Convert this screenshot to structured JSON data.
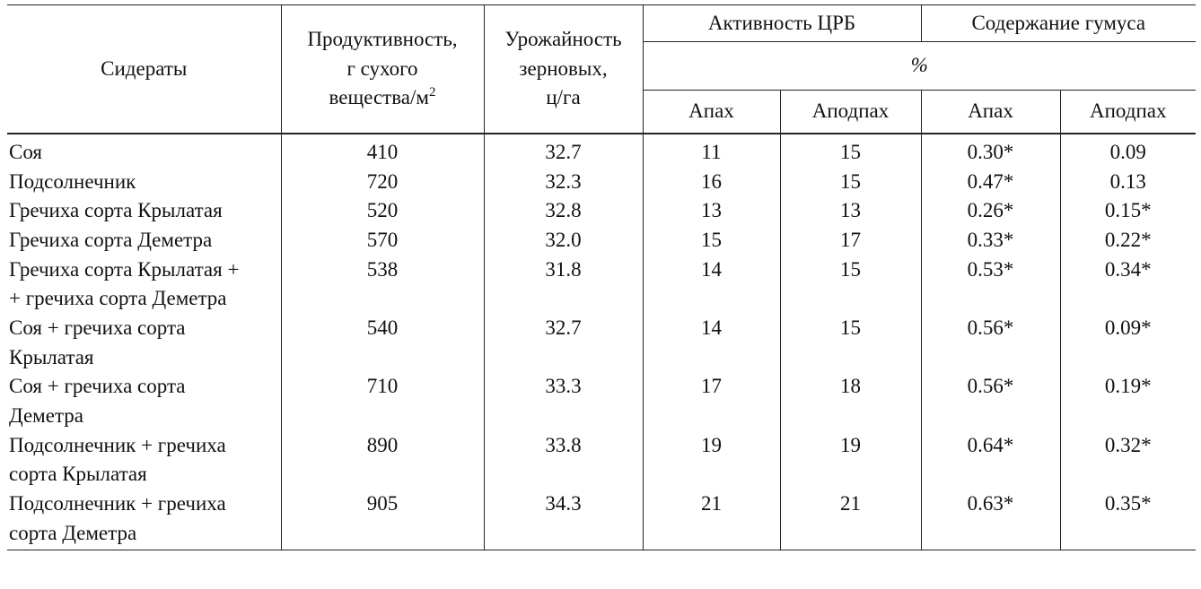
{
  "header": {
    "sideraty": "Сидераты",
    "productivity_line1": "Продуктивность,",
    "productivity_line2": "г сухого",
    "productivity_line3": "вещества/м",
    "productivity_sup": "2",
    "yield_line1": "Урожайность",
    "yield_line2": "зерновых,",
    "yield_line3": "ц/га",
    "activity": "Активность ЦРБ",
    "humus": "Содержание гумуса",
    "percent": "%",
    "apah_activity": "Апах",
    "apodpah_activity": "Аподпах",
    "apah_humus": "Апах",
    "apodpah_humus": "Аподпах"
  },
  "rows": [
    {
      "name_line1": "Соя",
      "name_line2": "",
      "productivity": "410",
      "yield": "32.7",
      "act_apah": "11",
      "act_apodpah": "15",
      "hum_apah": "0.30*",
      "hum_apodpah": "0.09"
    },
    {
      "name_line1": "Подсолнечник",
      "name_line2": "",
      "productivity": "720",
      "yield": "32.3",
      "act_apah": "16",
      "act_apodpah": "15",
      "hum_apah": "0.47*",
      "hum_apodpah": "0.13"
    },
    {
      "name_line1": "Гречиха сорта Крылатая",
      "name_line2": "",
      "productivity": "520",
      "yield": "32.8",
      "act_apah": "13",
      "act_apodpah": "13",
      "hum_apah": "0.26*",
      "hum_apodpah": "0.15*"
    },
    {
      "name_line1": "Гречиха сорта Деметра",
      "name_line2": "",
      "productivity": "570",
      "yield": "32.0",
      "act_apah": "15",
      "act_apodpah": "17",
      "hum_apah": "0.33*",
      "hum_apodpah": "0.22*"
    },
    {
      "name_line1": "Гречиха сорта Крылатая +",
      "name_line2": "+ гречиха сорта Деметра",
      "productivity": "538",
      "yield": "31.8",
      "act_apah": "14",
      "act_apodpah": "15",
      "hum_apah": "0.53*",
      "hum_apodpah": "0.34*"
    },
    {
      "name_line1": "Соя + гречиха сорта",
      "name_line2": "Крылатая",
      "productivity": "540",
      "yield": "32.7",
      "act_apah": "14",
      "act_apodpah": "15",
      "hum_apah": "0.56*",
      "hum_apodpah": "0.09*"
    },
    {
      "name_line1": "Соя + гречиха сорта",
      "name_line2": "Деметра",
      "productivity": "710",
      "yield": "33.3",
      "act_apah": "17",
      "act_apodpah": "18",
      "hum_apah": "0.56*",
      "hum_apodpah": "0.19*"
    },
    {
      "name_line1": "Подсолнечник + гречиха",
      "name_line2": "сорта Крылатая",
      "productivity": "890",
      "yield": "33.8",
      "act_apah": "19",
      "act_apodpah": "19",
      "hum_apah": "0.64*",
      "hum_apodpah": "0.32*"
    },
    {
      "name_line1": "Подсолнечник + гречиха",
      "name_line2": "сорта Деметра",
      "productivity": "905",
      "yield": "34.3",
      "act_apah": "21",
      "act_apodpah": "21",
      "hum_apah": "0.63*",
      "hum_apodpah": "0.35*"
    }
  ]
}
